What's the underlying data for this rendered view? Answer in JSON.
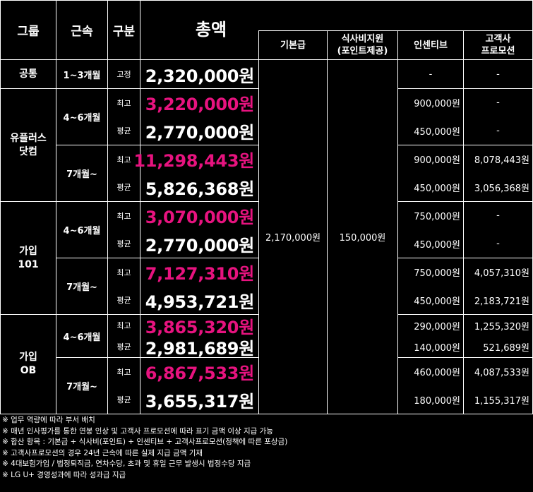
{
  "header": {
    "group": "그룹",
    "tenure": "근속",
    "type": "구분",
    "total": "총액",
    "base_pay": "기본급",
    "meal": "식사비지원",
    "meal_sub": "(포인트제공)",
    "incentive": "인센티브",
    "client": "고객사",
    "client_sub": "프로모션"
  },
  "labels": {
    "max": "최고",
    "avg": "평균",
    "fixed": "고정"
  },
  "common": {
    "group": "공통",
    "tenure": "1~3개월",
    "total": "2,320,000원",
    "incentive": "-",
    "client": "-"
  },
  "shared": {
    "base_pay": "2,170,000원",
    "meal": "150,000원"
  },
  "groups": [
    {
      "name_line1": "유플러스",
      "name_line2": "닷컴",
      "periods": [
        {
          "tenure": "4~6개월",
          "max": {
            "total": "3,220,000원",
            "incentive": "900,000원",
            "client": "-"
          },
          "avg": {
            "total": "2,770,000원",
            "incentive": "450,000원",
            "client": "-"
          }
        },
        {
          "tenure": "7개월~",
          "max": {
            "total": "11,298,443원",
            "incentive": "900,000원",
            "client": "8,078,443원"
          },
          "avg": {
            "total": "5,826,368원",
            "incentive": "450,000원",
            "client": "3,056,368원"
          }
        }
      ]
    },
    {
      "name_line1": "가입",
      "name_line2": "101",
      "periods": [
        {
          "tenure": "4~6개월",
          "max": {
            "total": "3,070,000원",
            "incentive": "750,000원",
            "client": "-"
          },
          "avg": {
            "total": "2,770,000원",
            "incentive": "450,000원",
            "client": "-"
          }
        },
        {
          "tenure": "7개월~",
          "max": {
            "total": "7,127,310원",
            "incentive": "750,000원",
            "client": "4,057,310원"
          },
          "avg": {
            "total": "4,953,721원",
            "incentive": "450,000원",
            "client": "2,183,721원"
          }
        }
      ]
    },
    {
      "name_line1": "가입",
      "name_line2": "OB",
      "periods": [
        {
          "tenure": "4~6개월",
          "max": {
            "total": "3,865,320원",
            "incentive": "290,000원",
            "client": "1,255,320원"
          },
          "avg": {
            "total": "2,981,689원",
            "incentive": "140,000원",
            "client": "521,689원"
          }
        },
        {
          "tenure": "7개월~",
          "max": {
            "total": "6,867,533원",
            "incentive": "460,000원",
            "client": "4,087,533원"
          },
          "avg": {
            "total": "3,655,317원",
            "incentive": "180,000원",
            "client": "1,155,317원"
          }
        }
      ]
    }
  ],
  "notes": [
    "※ 업무 역량에 따라 부서 배치",
    "※ 매년 인사평가를 통한 연봉 인상 및 고객사 프로모션에 따라  표기 금액 이상 지급 가능",
    "※ 합산 항목 : 기본급 + 식사비(포인트) + 인센티브 + 고객사프로모션(정책에 따른 포상금)",
    "※ 고객사프로모션의 경우 24년 근속에 따른 실제 지급 금액 기재",
    "※ 4대보험가입 / 법정퇴직금, 연차수당, 초과 및 휴일 근무 발생시 법정수당 지급",
    "※ LG U+ 경영성과에 따라 성과급 지급"
  ],
  "colors": {
    "highlight": "#e7137f",
    "background": "#000000",
    "line": "#ffffff"
  }
}
